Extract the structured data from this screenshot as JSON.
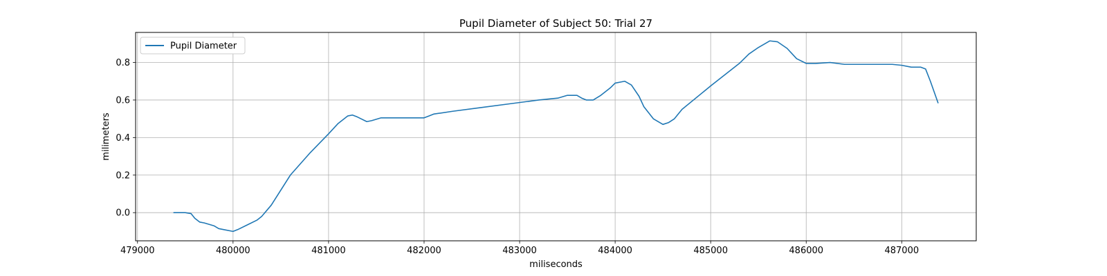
{
  "chart_data": {
    "type": "line",
    "title": "Pupil Diameter of Subject 50: Trial 27",
    "xlabel": "miliseconds",
    "ylabel": "milimeters",
    "xlim": [
      478980,
      487780
    ],
    "ylim": [
      -0.15,
      0.96
    ],
    "xticks": [
      479000,
      480000,
      481000,
      482000,
      483000,
      484000,
      485000,
      486000,
      487000
    ],
    "xtick_labels": [
      "479000",
      "480000",
      "481000",
      "482000",
      "483000",
      "484000",
      "485000",
      "486000",
      "487000"
    ],
    "yticks": [
      0.0,
      0.2,
      0.4,
      0.6,
      0.8
    ],
    "ytick_labels": [
      "0.0",
      "0.2",
      "0.4",
      "0.6",
      "0.8"
    ],
    "grid": true,
    "legend_position": "top-left",
    "series": [
      {
        "name": "Pupil Diameter",
        "color": "#1f77b4",
        "x": [
          479380,
          479500,
          479560,
          479600,
          479650,
          479700,
          479800,
          479850,
          479900,
          480000,
          480050,
          480150,
          480250,
          480300,
          480400,
          480600,
          480800,
          481000,
          481100,
          481200,
          481250,
          481300,
          481400,
          481450,
          481550,
          481700,
          482000,
          482050,
          482100,
          482300,
          482600,
          482900,
          483200,
          483400,
          483500,
          483600,
          483650,
          483700,
          483770,
          483850,
          483950,
          484000,
          484100,
          484170,
          484250,
          484300,
          484400,
          484500,
          484560,
          484620,
          484700,
          485000,
          485300,
          485400,
          485500,
          485620,
          485700,
          485800,
          485900,
          486000,
          486100,
          486250,
          486400,
          486600,
          486900,
          487000,
          487100,
          487200,
          487250,
          487300,
          487380
        ],
        "y": [
          0.0,
          0.0,
          -0.005,
          -0.03,
          -0.05,
          -0.055,
          -0.07,
          -0.085,
          -0.09,
          -0.1,
          -0.09,
          -0.065,
          -0.04,
          -0.02,
          0.04,
          0.2,
          0.315,
          0.42,
          0.475,
          0.515,
          0.52,
          0.51,
          0.485,
          0.49,
          0.505,
          0.505,
          0.505,
          0.515,
          0.525,
          0.54,
          0.56,
          0.58,
          0.6,
          0.61,
          0.625,
          0.625,
          0.61,
          0.6,
          0.6,
          0.625,
          0.665,
          0.69,
          0.7,
          0.68,
          0.62,
          0.565,
          0.5,
          0.47,
          0.48,
          0.5,
          0.55,
          0.675,
          0.795,
          0.845,
          0.88,
          0.915,
          0.91,
          0.875,
          0.82,
          0.795,
          0.795,
          0.8,
          0.79,
          0.79,
          0.79,
          0.785,
          0.775,
          0.775,
          0.765,
          0.7,
          0.585
        ]
      }
    ]
  }
}
